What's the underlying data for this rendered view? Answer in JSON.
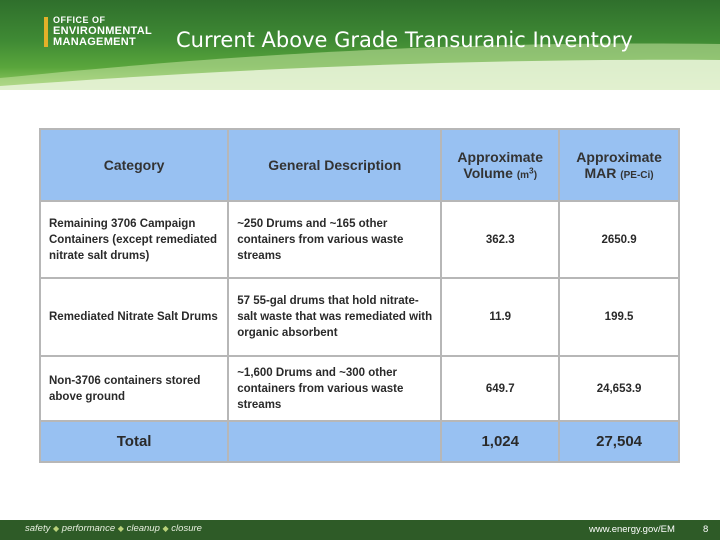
{
  "header": {
    "logo_line1": "OFFICE OF",
    "logo_line2": "ENVIRONMENTAL",
    "logo_line3": "MANAGEMENT",
    "title": "Current Above Grade Transuranic Inventory"
  },
  "table": {
    "headers": {
      "category": "Category",
      "description": "General Description",
      "volume": "Approximate",
      "volume_line2": "Volume",
      "volume_unit": "(m",
      "volume_unit_sup": "3",
      "volume_unit_end": ")",
      "mar": "Approximate",
      "mar_line2": "MAR",
      "mar_unit": "(PE-Ci)"
    },
    "rows": [
      {
        "category": "Remaining 3706 Campaign Containers (except remediated nitrate salt drums)",
        "description": "~250 Drums and ~165 other containers from various waste streams",
        "volume": "362.3",
        "mar": "2650.9"
      },
      {
        "category": "Remediated Nitrate Salt Drums",
        "description": "57 55-gal drums that hold nitrate-salt waste that was remediated with organic absorbent",
        "volume": "11.9",
        "mar": "199.5"
      },
      {
        "category": "Non-3706 containers stored above ground",
        "description": "~1,600 Drums and ~300 other containers from various waste streams",
        "volume": "649.7",
        "mar": "24,653.9"
      }
    ],
    "total": {
      "label": "Total",
      "description": "",
      "volume": "1,024",
      "mar": "27,504"
    }
  },
  "footer": {
    "tagline": [
      "safety",
      "performance",
      "cleanup",
      "closure"
    ],
    "url": "www.energy.gov/EM",
    "page": "8"
  },
  "colors": {
    "header_green": "#3f8a34",
    "footer_green": "#2e5b27",
    "table_header_blue": "#98c1f2",
    "logo_accent": "#e3b129"
  }
}
